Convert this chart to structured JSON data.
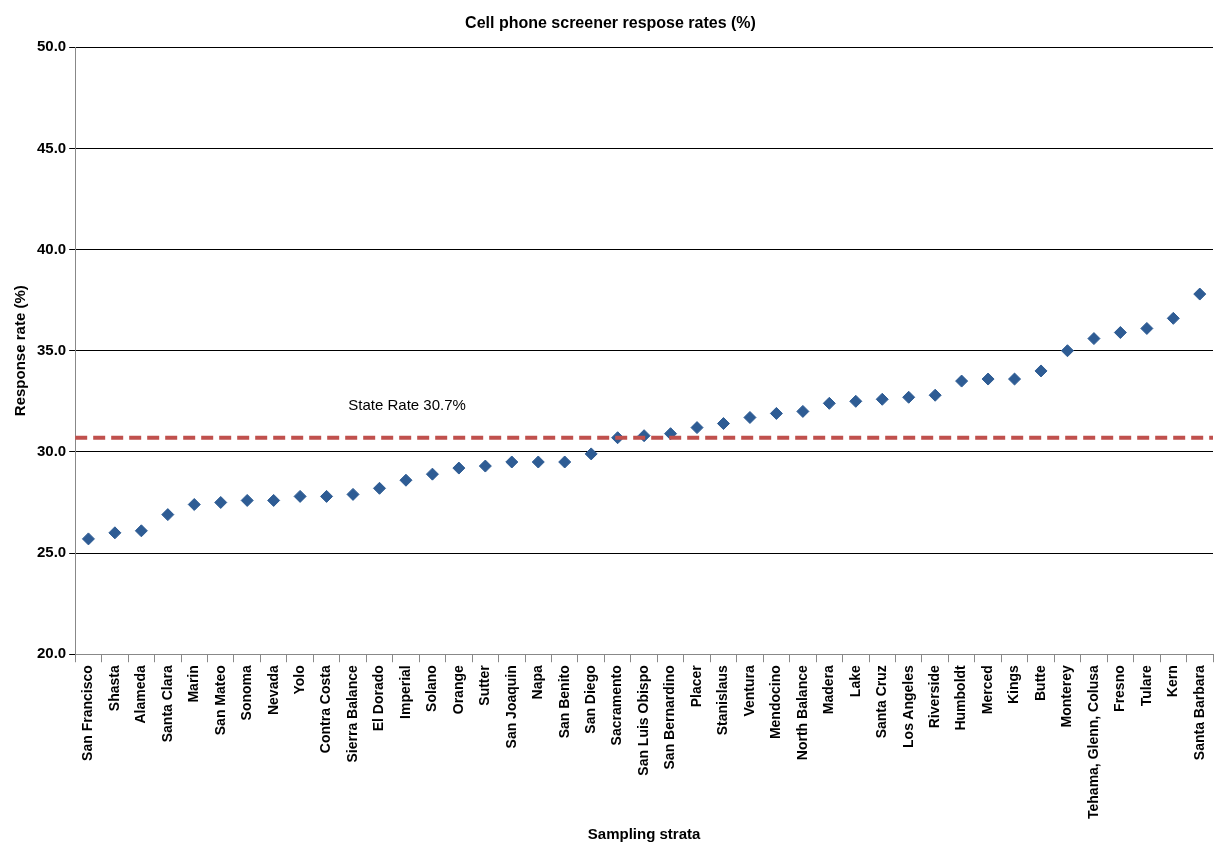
{
  "chart_data": {
    "type": "scatter",
    "title": "Cell phone screener respose rates (%)",
    "xlabel": "Sampling strata",
    "ylabel": "Response rate (%)",
    "categories": [
      "San Francisco",
      "Shasta",
      "Alameda",
      "Santa Clara",
      "Marin",
      "San Mateo",
      "Sonoma",
      "Nevada",
      "Yolo",
      "Contra Costa",
      "Sierra Balance",
      "El Dorado",
      "Imperial",
      "Solano",
      "Orange",
      "Sutter",
      "San Joaquin",
      "Napa",
      "San Benito",
      "San Diego",
      "Sacramento",
      "San Luis Obispo",
      "San Bernardino",
      "Placer",
      "Stanislaus",
      "Ventura",
      "Mendocino",
      "North Balance",
      "Madera",
      "Lake",
      "Santa Cruz",
      "Los Angeles",
      "Riverside",
      "Humboldt",
      "Merced",
      "Kings",
      "Butte",
      "Monterey",
      "Tehama, Glenn, Colusa",
      "Fresno",
      "Tulare",
      "Kern",
      "Santa Barbara"
    ],
    "series": [
      {
        "color": "#2e5c94",
        "values": [
          25.7,
          26.0,
          26.1,
          26.9,
          27.4,
          27.5,
          27.6,
          27.6,
          27.8,
          27.8,
          27.9,
          28.2,
          28.6,
          28.9,
          29.2,
          29.3,
          29.5,
          29.5,
          29.5,
          29.9,
          30.7,
          30.8,
          30.9,
          31.2,
          31.4,
          31.7,
          31.9,
          32.0,
          32.4,
          32.5,
          32.6,
          32.7,
          32.8,
          33.5,
          33.6,
          33.6,
          34.0,
          35.0,
          35.6,
          35.9,
          36.1,
          36.6,
          37.8
        ]
      }
    ],
    "marker": "diamond",
    "grid": "y",
    "legend": false,
    "ylim": [
      20,
      50
    ],
    "yticks": [
      {
        "value": 20,
        "label": "20.0"
      },
      {
        "value": 25,
        "label": "25.0"
      },
      {
        "value": 30,
        "label": "30.0"
      },
      {
        "value": 35,
        "label": "35.0"
      },
      {
        "value": 40,
        "label": "40.0"
      },
      {
        "value": 45,
        "label": "45.0"
      },
      {
        "value": 50,
        "label": "50.0"
      }
    ],
    "ref_lines": [
      {
        "axis": "y",
        "value": 30.7,
        "label": "State Rate 30.7%",
        "color": "#c0504d",
        "line_style": "dashed"
      }
    ]
  }
}
